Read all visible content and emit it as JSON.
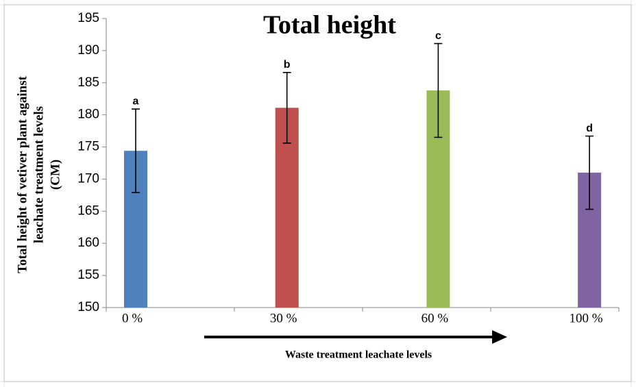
{
  "chart_data": {
    "type": "bar",
    "title": "Total height",
    "ylabel": [
      "Total height of vetiver plant against",
      "leachate treatment levels",
      "(CM)"
    ],
    "xlabel": "Waste treatment leachate levels",
    "categories": [
      "0 %",
      "30 %",
      "60 %",
      "100 %"
    ],
    "values": [
      174.4,
      181.1,
      183.8,
      171.0
    ],
    "errors": [
      6.5,
      5.5,
      7.3,
      5.7
    ],
    "value_labels": [
      "a",
      "b",
      "c",
      "d"
    ],
    "colors": [
      "#4f81bd",
      "#c0504d",
      "#9bbb59",
      "#8064a2"
    ],
    "ylim": [
      150,
      195
    ],
    "yticks": [
      150,
      155,
      160,
      165,
      170,
      175,
      180,
      185,
      190,
      195
    ]
  }
}
